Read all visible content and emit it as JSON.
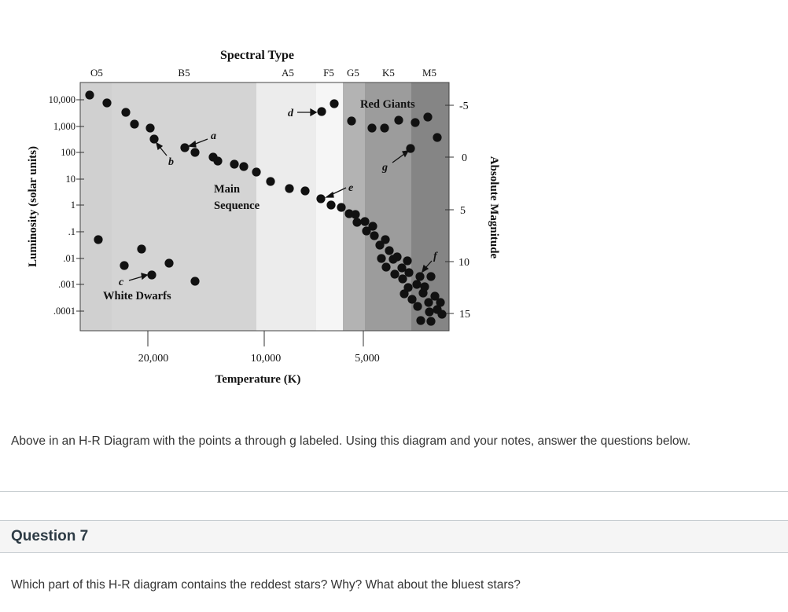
{
  "diagram": {
    "title": "Spectral Type",
    "spectral_types": [
      "O5",
      "B5",
      "A5",
      "F5",
      "G5",
      "K5",
      "M5"
    ],
    "luminosity_axis_label": "Luminosity (solar units)",
    "luminosity_ticks": [
      "10,000",
      "1,000",
      "100",
      "10",
      "1",
      ".1",
      ".01",
      ".001",
      ".0001"
    ],
    "magnitude_axis_label": "Absolute Magnitude",
    "magnitude_ticks": [
      "-5",
      "0",
      "5",
      "10",
      "15"
    ],
    "temperature_axis_label": "Temperature (K)",
    "temperature_ticks": [
      "20,000",
      "10,000",
      "5,000"
    ],
    "region_labels": {
      "red_giants": "Red Giants",
      "main_sequence_line1": "Main",
      "main_sequence_line2": "Sequence",
      "white_dwarfs": "White Dwarfs"
    },
    "point_labels": [
      "a",
      "b",
      "c",
      "d",
      "e",
      "f",
      "g"
    ],
    "band_colors": [
      "#d0d0d0",
      "#d4d4d4",
      "#ececec",
      "#f6f6f6",
      "#b3b3b3",
      "#9c9c9c",
      "#858585"
    ]
  },
  "caption": "Above in an H-R Diagram with the points a through g labeled. Using this diagram and your notes, answer the questions below.",
  "question": {
    "title": "Question 7",
    "text": "Which part of this H-R diagram contains the reddest stars? Why? What about the bluest stars?"
  }
}
